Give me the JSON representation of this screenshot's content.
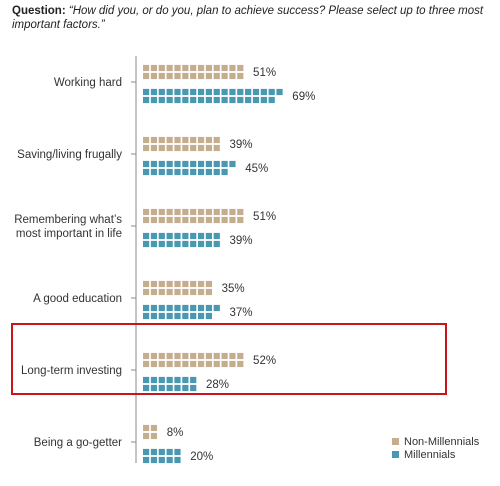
{
  "question": {
    "label": "Question:",
    "text": "“How did you, or do you, plan to achieve success? Please select up to three most important factors.”"
  },
  "colors": {
    "non_millennials": "#c5ae8f",
    "millennials": "#4a97b1",
    "highlight_border": "#c8151b",
    "axis": "#888888"
  },
  "highlighted_category": "Long-term investing",
  "chart_data": {
    "type": "bar",
    "style": "pictograph-squares",
    "title": "",
    "xlabel": "",
    "ylabel": "",
    "categories": [
      [
        "Working hard"
      ],
      [
        "Saving/living frugally"
      ],
      [
        "Remembering what’s",
        "most important in life"
      ],
      [
        "A good education"
      ],
      [
        "Long-term investing"
      ],
      [
        "Being a go-getter"
      ]
    ],
    "series": [
      {
        "name": "Non-Millennials",
        "values": [
          51,
          39,
          51,
          35,
          52,
          8
        ]
      },
      {
        "name": "Millennials",
        "values": [
          69,
          45,
          39,
          37,
          28,
          20
        ]
      }
    ],
    "value_labels": {
      "Non-Millennials": [
        "51%",
        "39%",
        "51%",
        "35%",
        "52%",
        "8%"
      ],
      "Millennials": [
        "69%",
        "45%",
        "39%",
        "37%",
        "28%",
        "20%"
      ]
    },
    "legend_position": "bottom-right",
    "grid": false
  }
}
